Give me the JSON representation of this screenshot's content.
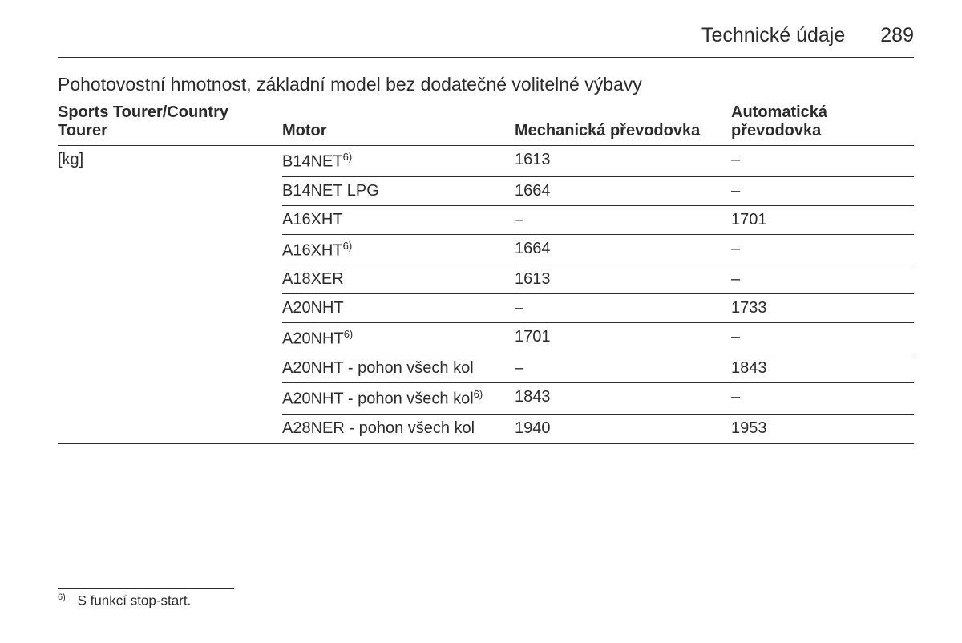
{
  "header": {
    "title": "Technické údaje",
    "page_number": "289"
  },
  "section_title": "Pohotovostní hmotnost, základní model bez dodatečné volitelné výbavy",
  "table": {
    "columns": {
      "model": "Sports Tourer/Country Tourer",
      "motor": "Motor",
      "manual": "Mechanická převodovka",
      "auto": "Automatická převodovka"
    },
    "unit_label": "[kg]",
    "rows": [
      {
        "motor": "B14NET",
        "motor_sup": "6)",
        "manual": "1613",
        "auto": "–"
      },
      {
        "motor": "B14NET LPG",
        "motor_sup": "",
        "manual": "1664",
        "auto": "–"
      },
      {
        "motor": "A16XHT",
        "motor_sup": "",
        "manual": "–",
        "auto": "1701"
      },
      {
        "motor": "A16XHT",
        "motor_sup": "6)",
        "manual": "1664",
        "auto": "–"
      },
      {
        "motor": "A18XER",
        "motor_sup": "",
        "manual": "1613",
        "auto": "–"
      },
      {
        "motor": "A20NHT",
        "motor_sup": "",
        "manual": "–",
        "auto": "1733"
      },
      {
        "motor": "A20NHT",
        "motor_sup": "6)",
        "manual": "1701",
        "auto": "–"
      },
      {
        "motor": "A20NHT - pohon všech kol",
        "motor_sup": "",
        "manual": "–",
        "auto": "1843"
      },
      {
        "motor": "A20NHT - pohon všech kol",
        "motor_sup": "6)",
        "manual": "1843",
        "auto": "–"
      },
      {
        "motor": "A28NER - pohon všech kol",
        "motor_sup": "",
        "manual": "1940",
        "auto": "1953"
      }
    ]
  },
  "footnote": {
    "marker": "6)",
    "text": "S funkcí stop-start."
  }
}
